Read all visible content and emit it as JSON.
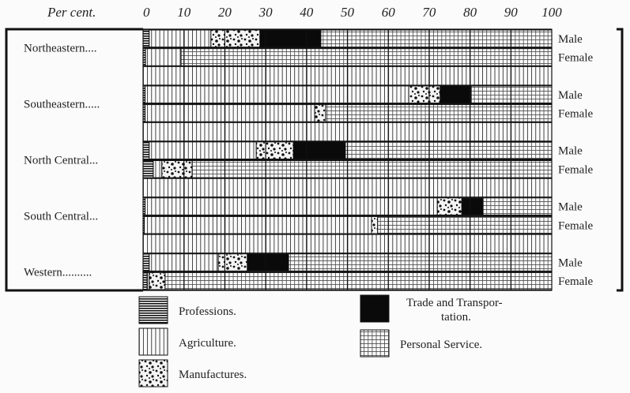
{
  "chart_data": {
    "type": "bar",
    "orientation": "horizontal-stacked",
    "axis_title": "Per cent.",
    "xlim": [
      0,
      100
    ],
    "xticks": [
      "0",
      "10",
      "20",
      "30",
      "40",
      "50",
      "60",
      "70",
      "80",
      "90",
      "100"
    ],
    "grid": true,
    "categories": [
      "Professions.",
      "Agriculture.",
      "Manufactures.",
      "Trade and Transportation.",
      "Personal Service."
    ],
    "legend": [
      {
        "label": "Professions.",
        "pattern": "horizontal-lines"
      },
      {
        "label": "Agriculture.",
        "pattern": "vertical-lines"
      },
      {
        "label": "Manufactures.",
        "pattern": "speckle"
      },
      {
        "label": "Trade and Transportation.",
        "label_lines": [
          "Trade and Transpor-",
          "tation."
        ],
        "pattern": "solid-black"
      },
      {
        "label": "Personal Service.",
        "pattern": "grid"
      }
    ],
    "regions": [
      {
        "name": "Northeastern....",
        "rows": [
          {
            "sex": "Male",
            "values": [
              1.5,
              15.1,
              12.0,
              14.9,
              56.5
            ]
          },
          {
            "sex": "Female",
            "values": [
              0.6,
              8.7,
              0,
              0,
              90.7
            ]
          }
        ]
      },
      {
        "name": "Southeastern.....",
        "rows": [
          {
            "sex": "Male",
            "values": [
              0.5,
              64.5,
              7.7,
              7.6,
              19.7
            ]
          },
          {
            "sex": "Female",
            "values": [
              0.5,
              41.5,
              2.7,
              0,
              55.3
            ]
          }
        ]
      },
      {
        "name": "North Central...",
        "rows": [
          {
            "sex": "Male",
            "values": [
              1.5,
              26.2,
              9.1,
              12.7,
              50.5
            ]
          },
          {
            "sex": "Female",
            "values": [
              2.5,
              2.1,
              7.4,
              0,
              88.0
            ]
          }
        ]
      },
      {
        "name": "South Central...",
        "rows": [
          {
            "sex": "Male",
            "values": [
              0.5,
              71.5,
              6.0,
              5.2,
              16.8
            ]
          },
          {
            "sex": "Female",
            "values": [
              0.3,
              55.6,
              1.5,
              0,
              42.6
            ]
          }
        ]
      },
      {
        "name": "Western..........",
        "rows": [
          {
            "sex": "Male",
            "values": [
              1.5,
              16.9,
              7.1,
              10.1,
              64.4
            ]
          },
          {
            "sex": "Female",
            "values": [
              1.0,
              0.5,
              3.9,
              0,
              94.6
            ]
          }
        ]
      }
    ]
  }
}
